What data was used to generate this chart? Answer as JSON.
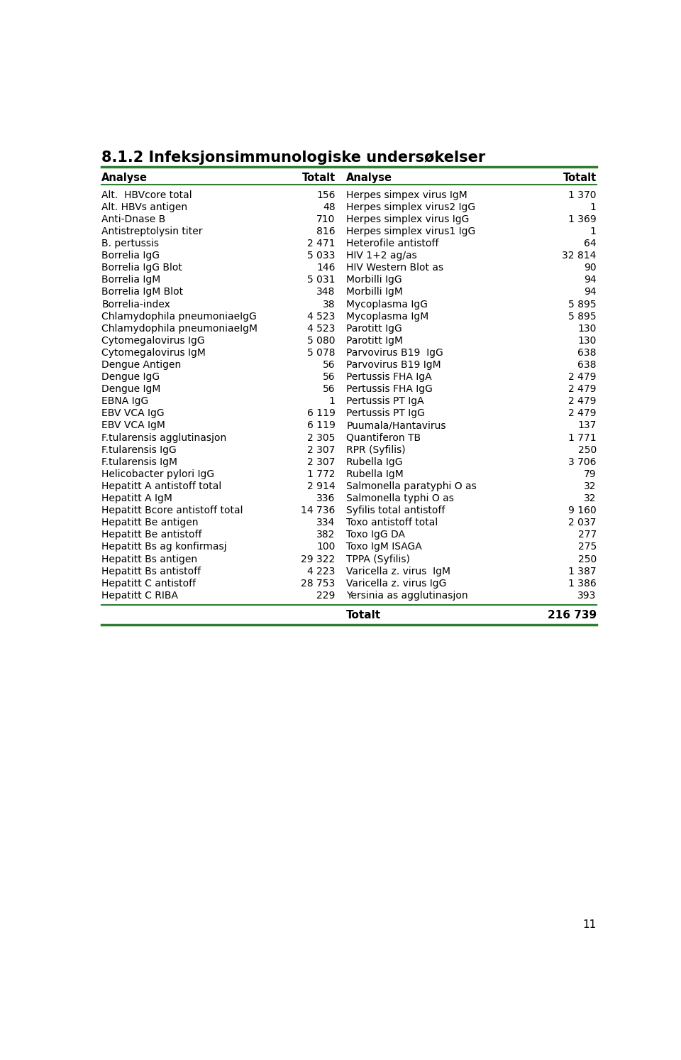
{
  "title": "8.1.2 Infeksjonsimmunologiske undersøkelser",
  "header": [
    "Analyse",
    "Totalt",
    "Analyse",
    "Totalt"
  ],
  "rows_left": [
    [
      "Alt.  HBVcore total",
      "156"
    ],
    [
      "Alt. HBVs antigen",
      "48"
    ],
    [
      "Anti-Dnase B",
      "710"
    ],
    [
      "Antistreptolysin titer",
      "816"
    ],
    [
      "B. pertussis",
      "2 471"
    ],
    [
      "Borrelia IgG",
      "5 033"
    ],
    [
      "Borrelia IgG Blot",
      "146"
    ],
    [
      "Borrelia IgM",
      "5 031"
    ],
    [
      "Borrelia IgM Blot",
      "348"
    ],
    [
      "Borrelia-index",
      "38"
    ],
    [
      "Chlamydophila pneumoniaeIgG",
      "4 523"
    ],
    [
      "Chlamydophila pneumoniaeIgM",
      "4 523"
    ],
    [
      "Cytomegalovirus IgG",
      "5 080"
    ],
    [
      "Cytomegalovirus IgM",
      "5 078"
    ],
    [
      "Dengue Antigen",
      "56"
    ],
    [
      "Dengue IgG",
      "56"
    ],
    [
      "Dengue IgM",
      "56"
    ],
    [
      "EBNA IgG",
      "1"
    ],
    [
      "EBV VCA IgG",
      "6 119"
    ],
    [
      "EBV VCA IgM",
      "6 119"
    ],
    [
      "F.tularensis agglutinasjon",
      "2 305"
    ],
    [
      "F.tularensis IgG",
      "2 307"
    ],
    [
      "F.tularensis IgM",
      "2 307"
    ],
    [
      "Helicobacter pylori IgG",
      "1 772"
    ],
    [
      "Hepatitt A antistoff total",
      "2 914"
    ],
    [
      "Hepatitt A IgM",
      "336"
    ],
    [
      "Hepatitt Bcore antistoff total",
      "14 736"
    ],
    [
      "Hepatitt Be antigen",
      "334"
    ],
    [
      "Hepatitt Be antistoff",
      "382"
    ],
    [
      "Hepatitt Bs ag konfirmasj",
      "100"
    ],
    [
      "Hepatitt Bs antigen",
      "29 322"
    ],
    [
      "Hepatitt Bs antistoff",
      "4 223"
    ],
    [
      "Hepatitt C antistoff",
      "28 753"
    ],
    [
      "Hepatitt C RIBA",
      "229"
    ]
  ],
  "rows_right": [
    [
      "Herpes simpex virus IgM",
      "1 370"
    ],
    [
      "Herpes simplex virus2 IgG",
      "1"
    ],
    [
      "Herpes simplex virus IgG",
      "1 369"
    ],
    [
      "Herpes simplex virus1 IgG",
      "1"
    ],
    [
      "Heterofile antistoff",
      "64"
    ],
    [
      "HIV 1+2 ag/as",
      "32 814"
    ],
    [
      "HIV Western Blot as",
      "90"
    ],
    [
      "Morbilli IgG",
      "94"
    ],
    [
      "Morbilli IgM",
      "94"
    ],
    [
      "Mycoplasma IgG",
      "5 895"
    ],
    [
      "Mycoplasma IgM",
      "5 895"
    ],
    [
      "Parotitt IgG",
      "130"
    ],
    [
      "Parotitt IgM",
      "130"
    ],
    [
      "Parvovirus B19  IgG",
      "638"
    ],
    [
      "Parvovirus B19 IgM",
      "638"
    ],
    [
      "Pertussis FHA IgA",
      "2 479"
    ],
    [
      "Pertussis FHA IgG",
      "2 479"
    ],
    [
      "Pertussis PT IgA",
      "2 479"
    ],
    [
      "Pertussis PT IgG",
      "2 479"
    ],
    [
      "Puumala/Hantavirus",
      "137"
    ],
    [
      "Quantiferon TB",
      "1 771"
    ],
    [
      "RPR (Syfilis)",
      "250"
    ],
    [
      "Rubella IgG",
      "3 706"
    ],
    [
      "Rubella IgM",
      "79"
    ],
    [
      "Salmonella paratyphi O as",
      "32"
    ],
    [
      "Salmonella typhi O as",
      "32"
    ],
    [
      "Syfilis total antistoff",
      "9 160"
    ],
    [
      "Toxo antistoff total",
      "2 037"
    ],
    [
      "Toxo IgG DA",
      "277"
    ],
    [
      "Toxo IgM ISAGA",
      "275"
    ],
    [
      "TPPA (Syfilis)",
      "250"
    ],
    [
      "Varicella z. virus  IgM",
      "1 387"
    ],
    [
      "Varicella z. virus IgG",
      "1 386"
    ],
    [
      "Yersinia as agglutinasjon",
      "393"
    ]
  ],
  "footer_label": "Totalt",
  "footer_value": "216 739",
  "page_number": "11",
  "title_color": "#000000",
  "header_line_color": "#2e7d32",
  "background_color": "#ffffff",
  "text_color": "#000000",
  "font_size": 10.0,
  "title_font_size": 15.0,
  "header_font_size": 10.5
}
